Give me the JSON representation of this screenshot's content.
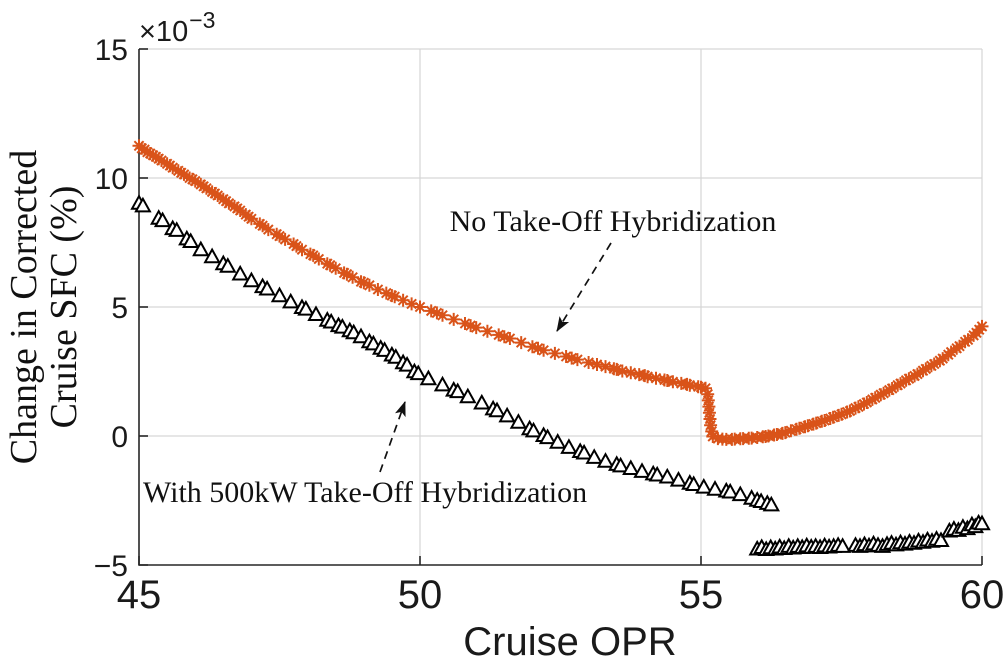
{
  "figure": {
    "background": "#ffffff",
    "annotations": [
      {
        "id": "no-hybridization",
        "text": "No Take-Off Hybridization"
      },
      {
        "id": "with-hybridization",
        "text": "With 500kW Take-Off Hybridization"
      }
    ]
  },
  "chart_data": {
    "type": "scatter",
    "title": "",
    "xlabel": "Cruise OPR",
    "ylabel_line1": "Change in Corrected",
    "ylabel_line2": "Cruise SFC (%)",
    "y_multiplier_base": "×10",
    "y_multiplier_exponent": "−3",
    "xlim": [
      45,
      60
    ],
    "ylim": [
      -5,
      15
    ],
    "x_ticks": [
      45,
      50,
      55,
      60
    ],
    "x_tick_labels": [
      "45",
      "50",
      "55",
      "60"
    ],
    "y_ticks": [
      15,
      10,
      5,
      0,
      -5
    ],
    "y_tick_labels": [
      "15",
      "10",
      "5",
      "0",
      "−5"
    ],
    "grid": true,
    "grid_color": "#d6d6d6",
    "axis_color": "#262626",
    "y_units_scale": "1e-3",
    "series": [
      {
        "id": "no-take-off-hybridization",
        "name": "No Take-Off Hybridization",
        "marker": "asterisk",
        "color": "#d95319",
        "points": [
          [
            45,
            11.25
          ],
          [
            45.05,
            11.15
          ],
          [
            45.1,
            11.1
          ],
          [
            45.15,
            11.0
          ],
          [
            45.2,
            10.95
          ],
          [
            45.25,
            10.88
          ],
          [
            45.3,
            10.82
          ],
          [
            45.35,
            10.75
          ],
          [
            45.4,
            10.68
          ],
          [
            45.5,
            10.55
          ],
          [
            45.55,
            10.48
          ],
          [
            45.6,
            10.4
          ],
          [
            45.7,
            10.28
          ],
          [
            45.75,
            10.2
          ],
          [
            45.8,
            10.14
          ],
          [
            45.9,
            10.0
          ],
          [
            45.95,
            9.95
          ],
          [
            46,
            9.88
          ],
          [
            46.1,
            9.75
          ],
          [
            46.15,
            9.68
          ],
          [
            46.2,
            9.6
          ],
          [
            46.3,
            9.46
          ],
          [
            46.35,
            9.4
          ],
          [
            46.4,
            9.32
          ],
          [
            46.5,
            9.18
          ],
          [
            46.55,
            9.1
          ],
          [
            46.6,
            9.02
          ],
          [
            46.7,
            8.9
          ],
          [
            46.75,
            8.82
          ],
          [
            46.8,
            8.74
          ],
          [
            46.9,
            8.58
          ],
          [
            46.95,
            8.5
          ],
          [
            47,
            8.42
          ],
          [
            47.15,
            8.22
          ],
          [
            47.2,
            8.15
          ],
          [
            47.3,
            8.0
          ],
          [
            47.45,
            7.82
          ],
          [
            47.5,
            7.75
          ],
          [
            47.6,
            7.62
          ],
          [
            47.75,
            7.44
          ],
          [
            47.8,
            7.36
          ],
          [
            47.9,
            7.22
          ],
          [
            48.05,
            7.05
          ],
          [
            48.1,
            7.0
          ],
          [
            48.2,
            6.86
          ],
          [
            48.35,
            6.68
          ],
          [
            48.4,
            6.62
          ],
          [
            48.5,
            6.5
          ],
          [
            48.65,
            6.32
          ],
          [
            48.7,
            6.27
          ],
          [
            48.8,
            6.15
          ],
          [
            48.95,
            5.98
          ],
          [
            49,
            5.94
          ],
          [
            49.1,
            5.84
          ],
          [
            49.25,
            5.68
          ],
          [
            49.4,
            5.54
          ],
          [
            49.5,
            5.44
          ],
          [
            49.55,
            5.4
          ],
          [
            49.7,
            5.26
          ],
          [
            49.85,
            5.12
          ],
          [
            50,
            5.0
          ],
          [
            50.2,
            4.85
          ],
          [
            50.3,
            4.77
          ],
          [
            50.4,
            4.68
          ],
          [
            50.6,
            4.52
          ],
          [
            50.8,
            4.36
          ],
          [
            50.9,
            4.28
          ],
          [
            51,
            4.2
          ],
          [
            51.2,
            4.06
          ],
          [
            51.4,
            3.92
          ],
          [
            51.5,
            3.85
          ],
          [
            51.6,
            3.78
          ],
          [
            51.8,
            3.62
          ],
          [
            52,
            3.46
          ],
          [
            52.1,
            3.4
          ],
          [
            52.2,
            3.32
          ],
          [
            52.4,
            3.2
          ],
          [
            52.6,
            3.08
          ],
          [
            52.7,
            3.02
          ],
          [
            52.8,
            2.96
          ],
          [
            53,
            2.85
          ],
          [
            53.15,
            2.77
          ],
          [
            53.3,
            2.69
          ],
          [
            53.45,
            2.61
          ],
          [
            53.5,
            2.58
          ],
          [
            53.6,
            2.52
          ],
          [
            53.75,
            2.45
          ],
          [
            53.9,
            2.38
          ],
          [
            54,
            2.34
          ],
          [
            54.05,
            2.3
          ],
          [
            54.2,
            2.24
          ],
          [
            54.35,
            2.17
          ],
          [
            54.4,
            2.15
          ],
          [
            54.5,
            2.1
          ],
          [
            54.65,
            2.04
          ],
          [
            54.75,
            2.0
          ],
          [
            54.8,
            1.97
          ],
          [
            54.95,
            1.91
          ],
          [
            55,
            1.89
          ],
          [
            55.08,
            1.85
          ],
          [
            55.12,
            1.62
          ],
          [
            55.13,
            1.38
          ],
          [
            55.14,
            1.14
          ],
          [
            55.15,
            0.9
          ],
          [
            55.16,
            0.66
          ],
          [
            55.17,
            0.42
          ],
          [
            55.19,
            0.18
          ],
          [
            55.21,
            -0.02
          ],
          [
            55.3,
            -0.1
          ],
          [
            55.38,
            -0.12
          ],
          [
            55.45,
            -0.13
          ],
          [
            55.55,
            -0.13
          ],
          [
            55.6,
            -0.12
          ],
          [
            55.7,
            -0.11
          ],
          [
            55.75,
            -0.1
          ],
          [
            55.85,
            -0.09
          ],
          [
            55.9,
            -0.08
          ],
          [
            56,
            -0.06
          ],
          [
            56.1,
            -0.03
          ],
          [
            56.15,
            -0.02
          ],
          [
            56.2,
            0.0
          ],
          [
            56.3,
            0.04
          ],
          [
            56.35,
            0.06
          ],
          [
            56.45,
            0.1
          ],
          [
            56.5,
            0.13
          ],
          [
            56.6,
            0.2
          ],
          [
            56.7,
            0.26
          ],
          [
            56.75,
            0.3
          ],
          [
            56.85,
            0.36
          ],
          [
            56.9,
            0.4
          ],
          [
            57,
            0.46
          ],
          [
            57.05,
            0.5
          ],
          [
            57.15,
            0.57
          ],
          [
            57.2,
            0.6
          ],
          [
            57.3,
            0.68
          ],
          [
            57.35,
            0.73
          ],
          [
            57.45,
            0.8
          ],
          [
            57.5,
            0.84
          ],
          [
            57.6,
            0.93
          ],
          [
            57.65,
            0.97
          ],
          [
            57.75,
            1.08
          ],
          [
            57.8,
            1.13
          ],
          [
            57.9,
            1.24
          ],
          [
            57.95,
            1.3
          ],
          [
            58.05,
            1.42
          ],
          [
            58.1,
            1.48
          ],
          [
            58.2,
            1.6
          ],
          [
            58.25,
            1.66
          ],
          [
            58.35,
            1.78
          ],
          [
            58.4,
            1.84
          ],
          [
            58.5,
            1.97
          ],
          [
            58.55,
            2.03
          ],
          [
            58.65,
            2.16
          ],
          [
            58.7,
            2.22
          ],
          [
            58.8,
            2.33
          ],
          [
            58.85,
            2.4
          ],
          [
            58.95,
            2.53
          ],
          [
            59,
            2.6
          ],
          [
            59.1,
            2.72
          ],
          [
            59.15,
            2.79
          ],
          [
            59.25,
            2.92
          ],
          [
            59.3,
            3.0
          ],
          [
            59.4,
            3.15
          ],
          [
            59.45,
            3.25
          ],
          [
            59.55,
            3.4
          ],
          [
            59.6,
            3.48
          ],
          [
            59.7,
            3.65
          ],
          [
            59.75,
            3.73
          ],
          [
            59.85,
            3.9
          ],
          [
            59.9,
            4.0
          ],
          [
            59.95,
            4.12
          ],
          [
            60,
            4.25
          ]
        ]
      },
      {
        "id": "with-take-off-hybridization",
        "name": "With 500kW Take-Off Hybridization",
        "marker": "triangle-up",
        "color": "#000000",
        "fill": "#ffffff",
        "points": [
          [
            45,
            9.0
          ],
          [
            45.07,
            8.9
          ],
          [
            45.35,
            8.42
          ],
          [
            45.42,
            8.33
          ],
          [
            45.6,
            8.02
          ],
          [
            45.67,
            7.95
          ],
          [
            45.85,
            7.62
          ],
          [
            45.92,
            7.52
          ],
          [
            46.1,
            7.2
          ],
          [
            46.3,
            6.93
          ],
          [
            46.5,
            6.66
          ],
          [
            46.58,
            6.56
          ],
          [
            46.8,
            6.26
          ],
          [
            47,
            6.0
          ],
          [
            47.2,
            5.77
          ],
          [
            47.28,
            5.68
          ],
          [
            47.5,
            5.42
          ],
          [
            47.7,
            5.18
          ],
          [
            47.9,
            4.96
          ],
          [
            47.97,
            4.9
          ],
          [
            48.15,
            4.69
          ],
          [
            48.35,
            4.47
          ],
          [
            48.42,
            4.4
          ],
          [
            48.55,
            4.26
          ],
          [
            48.62,
            4.2
          ],
          [
            48.75,
            4.06
          ],
          [
            48.82,
            3.98
          ],
          [
            48.95,
            3.83
          ],
          [
            49.1,
            3.63
          ],
          [
            49.17,
            3.55
          ],
          [
            49.3,
            3.38
          ],
          [
            49.37,
            3.3
          ],
          [
            49.5,
            3.12
          ],
          [
            49.57,
            3.03
          ],
          [
            49.7,
            2.82
          ],
          [
            49.77,
            2.73
          ],
          [
            49.9,
            2.47
          ],
          [
            49.97,
            2.4
          ],
          [
            50.15,
            2.2
          ],
          [
            50.4,
            1.96
          ],
          [
            50.6,
            1.76
          ],
          [
            50.67,
            1.7
          ],
          [
            50.85,
            1.5
          ],
          [
            51.1,
            1.26
          ],
          [
            51.3,
            1.03
          ],
          [
            51.37,
            0.96
          ],
          [
            51.55,
            0.76
          ],
          [
            51.75,
            0.51
          ],
          [
            51.95,
            0.26
          ],
          [
            52.02,
            0.18
          ],
          [
            52.2,
            0.0
          ],
          [
            52.27,
            -0.08
          ],
          [
            52.45,
            -0.26
          ],
          [
            52.65,
            -0.46
          ],
          [
            52.85,
            -0.62
          ],
          [
            52.92,
            -0.68
          ],
          [
            53.1,
            -0.85
          ],
          [
            53.3,
            -1.0
          ],
          [
            53.5,
            -1.12
          ],
          [
            53.57,
            -1.18
          ],
          [
            53.75,
            -1.28
          ],
          [
            53.95,
            -1.39
          ],
          [
            54.15,
            -1.49
          ],
          [
            54.22,
            -1.53
          ],
          [
            54.4,
            -1.61
          ],
          [
            54.6,
            -1.73
          ],
          [
            54.8,
            -1.85
          ],
          [
            54.87,
            -1.9
          ],
          [
            55.05,
            -2.0
          ],
          [
            55.25,
            -2.08
          ],
          [
            55.45,
            -2.15
          ],
          [
            55.52,
            -2.19
          ],
          [
            55.7,
            -2.29
          ],
          [
            55.9,
            -2.43
          ],
          [
            56,
            -2.51
          ],
          [
            56.07,
            -2.56
          ],
          [
            56.18,
            -2.63
          ],
          [
            56.25,
            -2.69
          ],
          [
            56,
            -4.4
          ],
          [
            56.08,
            -4.34
          ],
          [
            56.16,
            -4.42
          ],
          [
            56.24,
            -4.35
          ],
          [
            56.32,
            -4.4
          ],
          [
            56.4,
            -4.32
          ],
          [
            56.48,
            -4.38
          ],
          [
            56.56,
            -4.3
          ],
          [
            56.64,
            -4.36
          ],
          [
            56.72,
            -4.3
          ],
          [
            56.8,
            -4.34
          ],
          [
            56.88,
            -4.28
          ],
          [
            56.96,
            -4.33
          ],
          [
            57.04,
            -4.3
          ],
          [
            57.12,
            -4.34
          ],
          [
            57.2,
            -4.28
          ],
          [
            57.28,
            -4.32
          ],
          [
            57.36,
            -4.3
          ],
          [
            57.44,
            -4.26
          ],
          [
            57.52,
            -4.3
          ],
          [
            57.75,
            -4.26
          ],
          [
            57.83,
            -4.3
          ],
          [
            57.91,
            -4.23
          ],
          [
            57.99,
            -4.28
          ],
          [
            58.07,
            -4.2
          ],
          [
            58.15,
            -4.26
          ],
          [
            58.23,
            -4.3
          ],
          [
            58.31,
            -4.22
          ],
          [
            58.39,
            -4.18
          ],
          [
            58.47,
            -4.24
          ],
          [
            58.55,
            -4.16
          ],
          [
            58.63,
            -4.21
          ],
          [
            58.71,
            -4.13
          ],
          [
            58.79,
            -4.18
          ],
          [
            58.87,
            -4.09
          ],
          [
            58.95,
            -4.14
          ],
          [
            59.03,
            -4.05
          ],
          [
            59.11,
            -4.1
          ],
          [
            59.19,
            -4.02
          ],
          [
            59.27,
            -4.07
          ],
          [
            59.42,
            -3.7
          ],
          [
            59.5,
            -3.63
          ],
          [
            59.58,
            -3.68
          ],
          [
            59.66,
            -3.56
          ],
          [
            59.74,
            -3.61
          ],
          [
            59.82,
            -3.46
          ],
          [
            59.88,
            -3.53
          ],
          [
            59.94,
            -3.39
          ],
          [
            60,
            -3.42
          ]
        ]
      }
    ]
  }
}
